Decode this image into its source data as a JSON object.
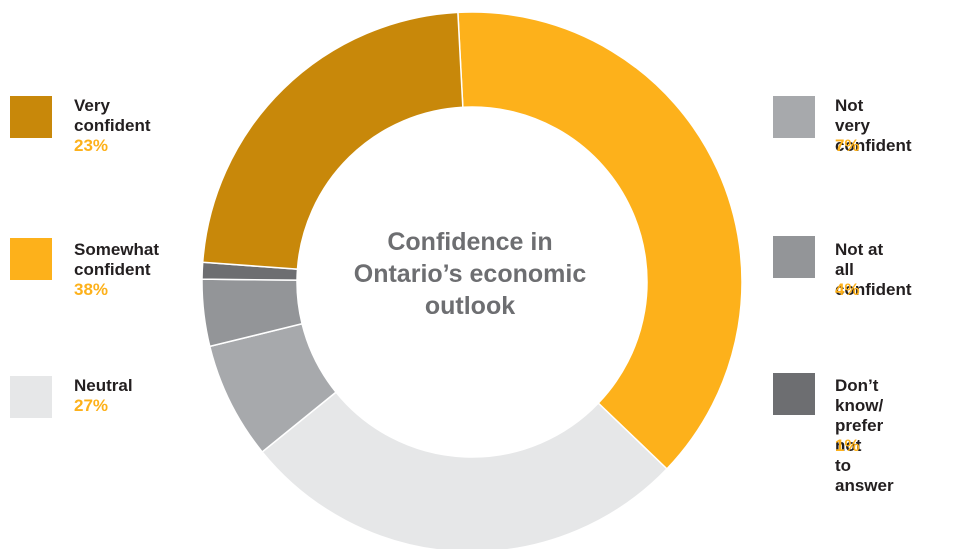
{
  "chart_data": {
    "type": "pie",
    "style": "donut",
    "center_title": "Confidence in\nOntario’s economic\noutlook",
    "slices": [
      {
        "label": "Very\nconfident",
        "value": 23,
        "value_label": "23%",
        "color": "#c8880a"
      },
      {
        "label": "Somewhat\nconfident",
        "value": 38,
        "value_label": "38%",
        "color": "#fdb11b"
      },
      {
        "label": "Neutral",
        "value": 27,
        "value_label": "27%",
        "color": "#e6e7e8"
      },
      {
        "label": "Not\nvery confident",
        "value": 7,
        "value_label": "7%",
        "color": "#a7a9ac"
      },
      {
        "label": "Not at\nall confident",
        "value": 4,
        "value_label": "4%",
        "color": "#939598"
      },
      {
        "label": "Don’t know/\nprefer not\nto answer",
        "value": 1,
        "value_label": "1%",
        "color": "#6d6e71"
      }
    ],
    "percent_color": "#fdb11b"
  }
}
